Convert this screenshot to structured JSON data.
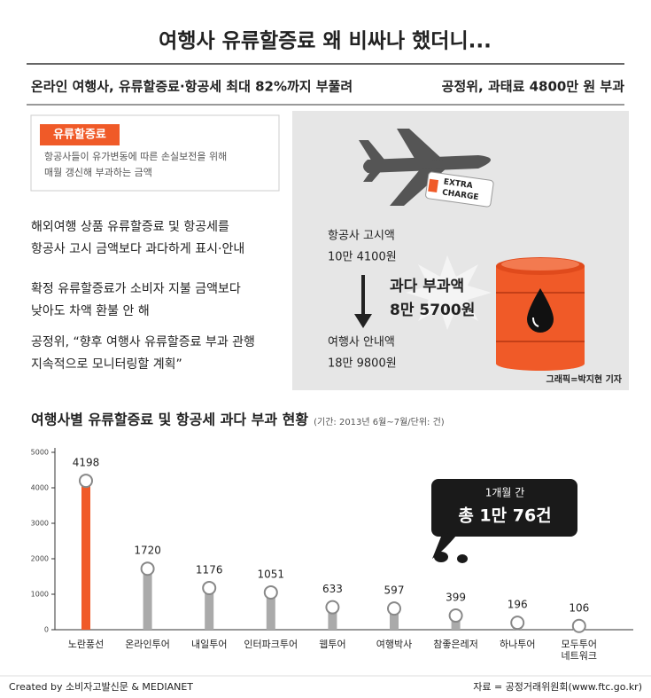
{
  "header": {
    "title": "여행사 유류할증료 왜 비싸나 했더니...",
    "subtitle_left": "온라인 여행사, 유류할증료·항공세 최대 82%까지 부풀려",
    "subtitle_right": "공정위, 과태료 4800만 원 부과"
  },
  "info": {
    "label": "유류할증료",
    "lines": [
      "항공사들이 유가변동에 따른 손실보전을 위해",
      "매월 갱신해 부과하는 금액"
    ]
  },
  "bullets": [
    [
      "해외여행 상품 유류할증료 및 항공세를",
      "항공사 고시 금액보다 과다하게 표시·안내"
    ],
    [
      "확정 유류할증료가 소비자 지불 금액보다",
      "낮아도 차액 환불 안 해"
    ],
    [
      "공정위, “향후 여행사 유류할증료 부과 관행",
      "지속적으로 모니터링할 계획”"
    ]
  ],
  "graphic": {
    "tag": [
      "EXTRA",
      "CHARGE"
    ],
    "airline_label": "항공사 고시액",
    "airline_amount": "10만 4100원",
    "excess_label": "과다 부과액",
    "excess_amount": "8만 5700원",
    "agency_label": "여행사 안내액",
    "agency_amount": "18만 9800원",
    "credit": "그래픽=박지현 기자"
  },
  "chart_data": {
    "type": "bar",
    "title": "여행사별 유류할증료 및 항공세 과다 부과 현황",
    "subtitle": "(기간: 2013년 6월~7월/단위: 건)",
    "categories": [
      "노란풍선",
      "온라인투어",
      "내일투어",
      "인터파크투어",
      "웹투어",
      "여행박사",
      "참좋은레저",
      "하나투어",
      "모두투어\n네트워크"
    ],
    "values": [
      4198,
      1720,
      1176,
      1051,
      633,
      597,
      399,
      196,
      106
    ],
    "colors": [
      "#f05a28",
      "#aaaaaa",
      "#aaaaaa",
      "#aaaaaa",
      "#aaaaaa",
      "#aaaaaa",
      "#aaaaaa",
      "#aaaaaa",
      "#aaaaaa"
    ],
    "ylim": [
      0,
      5000
    ],
    "yticks": [
      0,
      1000,
      2000,
      3000,
      4000,
      5000
    ],
    "grid": false,
    "callout": {
      "line1": "1개월 간",
      "line2": "총 1만 76건"
    }
  },
  "footer": {
    "left": "Created by 소비자고발신문 & MEDIANET",
    "right": "자료 = 공정거래위원회(www.ftc.go.kr)"
  }
}
